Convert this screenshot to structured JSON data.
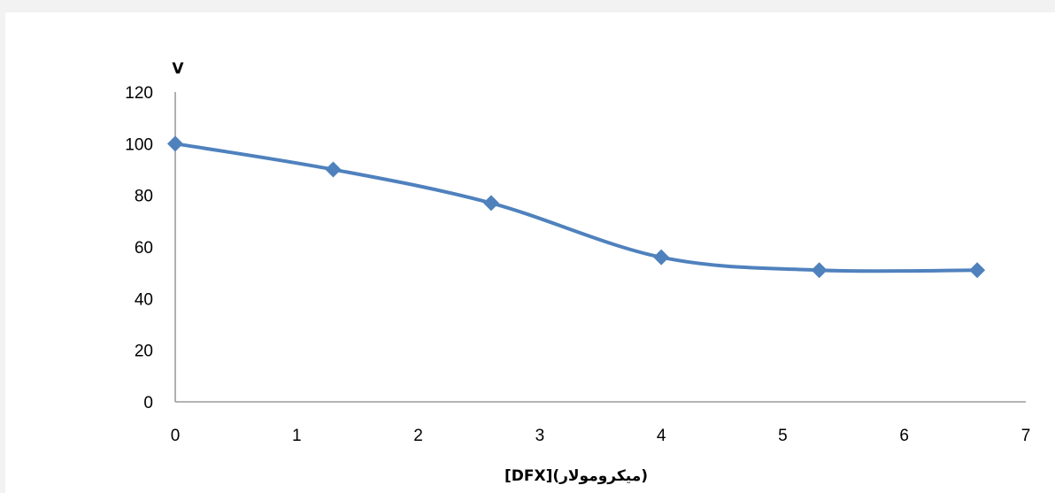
{
  "chart_data": {
    "type": "line",
    "title": "",
    "xlabel": "[DFX](میکرومولار)",
    "ylabel": "V",
    "xlim": [
      0,
      7
    ],
    "ylim": [
      0,
      120
    ],
    "xticks": [
      0,
      1,
      2,
      3,
      4,
      5,
      6,
      7
    ],
    "yticks": [
      0,
      20,
      40,
      60,
      80,
      100,
      120
    ],
    "smooth": true,
    "grid": false,
    "legend": "none",
    "series": [
      {
        "x": [
          0,
          1.3,
          2.6,
          4.0,
          5.3,
          6.6
        ],
        "y": [
          100,
          90,
          77,
          56,
          51,
          51
        ],
        "color": "#4f81bd",
        "marker": "diamond"
      }
    ]
  }
}
